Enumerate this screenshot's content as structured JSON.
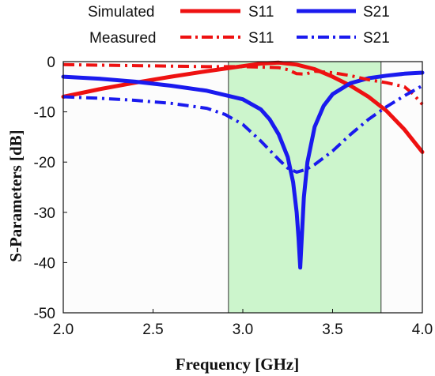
{
  "chart_data": {
    "type": "line",
    "xlabel": "Frequency [GHz]",
    "ylabel": "S-Parameters [dB]",
    "xlim": [
      2.0,
      4.0
    ],
    "ylim": [
      -50,
      0
    ],
    "xticks": [
      "2.0",
      "2.5",
      "3.0",
      "3.5",
      "4.0"
    ],
    "yticks": [
      "0",
      "-10",
      "-20",
      "-30",
      "-40",
      "-50"
    ],
    "highlight_band": {
      "from": 2.92,
      "to": 3.77,
      "color": "#ccf5cc"
    },
    "legend": {
      "rows": [
        {
          "group": "Simulated",
          "entries": [
            "S11",
            "S21"
          ]
        },
        {
          "group": "Measured",
          "entries": [
            "S11",
            "S21"
          ]
        }
      ]
    },
    "series": [
      {
        "name": "S11",
        "group": "Simulated",
        "color": "#ee1111",
        "style": "solid",
        "x": [
          2.0,
          2.2,
          2.4,
          2.6,
          2.8,
          3.0,
          3.1,
          3.2,
          3.3,
          3.4,
          3.5,
          3.6,
          3.7,
          3.8,
          3.9,
          4.0
        ],
        "y": [
          -7,
          -5.5,
          -4.2,
          -3.0,
          -1.9,
          -0.9,
          -0.4,
          -0.2,
          -0.6,
          -1.5,
          -3.0,
          -4.8,
          -7.0,
          -9.8,
          -13.5,
          -18
        ]
      },
      {
        "name": "S21",
        "group": "Simulated",
        "color": "#1a1aee",
        "style": "solid",
        "x": [
          2.0,
          2.2,
          2.4,
          2.6,
          2.8,
          3.0,
          3.1,
          3.15,
          3.2,
          3.25,
          3.28,
          3.3,
          3.31,
          3.32,
          3.33,
          3.34,
          3.36,
          3.4,
          3.45,
          3.5,
          3.6,
          3.7,
          3.8,
          3.9,
          4.0
        ],
        "y": [
          -3,
          -3.4,
          -4.0,
          -4.8,
          -5.8,
          -7.5,
          -9.5,
          -11.5,
          -14.5,
          -19,
          -24,
          -30,
          -35,
          -41,
          -34,
          -27,
          -20,
          -13,
          -8.8,
          -6.5,
          -4.3,
          -3.3,
          -2.8,
          -2.4,
          -2.2
        ]
      },
      {
        "name": "S11",
        "group": "Measured",
        "color": "#ee1111",
        "style": "dashdot",
        "x": [
          2.0,
          2.2,
          2.4,
          2.6,
          2.8,
          3.0,
          3.2,
          3.25,
          3.3,
          3.35,
          3.4,
          3.5,
          3.6,
          3.7,
          3.8,
          3.9,
          3.95,
          4.0
        ],
        "y": [
          -0.6,
          -0.7,
          -0.8,
          -0.9,
          -1.0,
          -1.0,
          -1.2,
          -1.6,
          -2.4,
          -2.5,
          -1.9,
          -2.2,
          -2.8,
          -3.6,
          -4.2,
          -5.0,
          -6.5,
          -8.5
        ]
      },
      {
        "name": "S21",
        "group": "Measured",
        "color": "#1a1aee",
        "style": "dashdot",
        "x": [
          2.0,
          2.2,
          2.4,
          2.6,
          2.8,
          2.9,
          3.0,
          3.1,
          3.2,
          3.25,
          3.3,
          3.35,
          3.4,
          3.5,
          3.6,
          3.7,
          3.8,
          3.9,
          4.0
        ],
        "y": [
          -7,
          -7.3,
          -7.7,
          -8.3,
          -9.3,
          -10.5,
          -12.5,
          -15.8,
          -19.5,
          -21.2,
          -22.0,
          -21.5,
          -20.5,
          -17.8,
          -14.5,
          -11.5,
          -9.0,
          -6.8,
          -4.8
        ]
      }
    ]
  }
}
